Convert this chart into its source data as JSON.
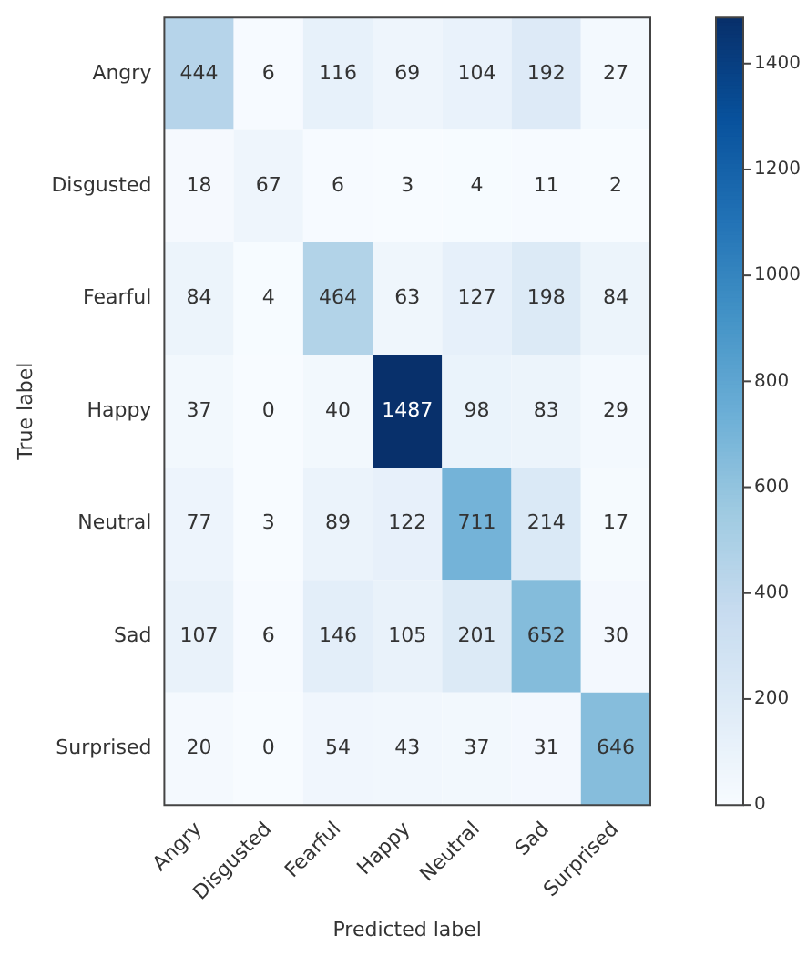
{
  "chart_data": {
    "type": "heatmap",
    "xlabel": "Predicted label",
    "ylabel": "True label",
    "categories": [
      "Angry",
      "Disgusted",
      "Fearful",
      "Happy",
      "Neutral",
      "Sad",
      "Surprised"
    ],
    "y_categories": [
      "Angry",
      "Disgusted",
      "Fearful",
      "Happy",
      "Neutral",
      "Sad",
      "Surprised"
    ],
    "cells": [
      [
        444,
        6,
        116,
        69,
        104,
        192,
        27
      ],
      [
        18,
        67,
        6,
        3,
        4,
        11,
        2
      ],
      [
        84,
        4,
        464,
        63,
        127,
        198,
        84
      ],
      [
        37,
        0,
        40,
        1487,
        98,
        83,
        29
      ],
      [
        77,
        3,
        89,
        122,
        711,
        214,
        17
      ],
      [
        107,
        6,
        146,
        105,
        201,
        652,
        30
      ],
      [
        20,
        0,
        54,
        43,
        37,
        31,
        646
      ]
    ],
    "clim": [
      0,
      1487
    ],
    "cticks": [
      0,
      200,
      400,
      600,
      800,
      1000,
      1200,
      1400
    ],
    "data_labels": true
  }
}
